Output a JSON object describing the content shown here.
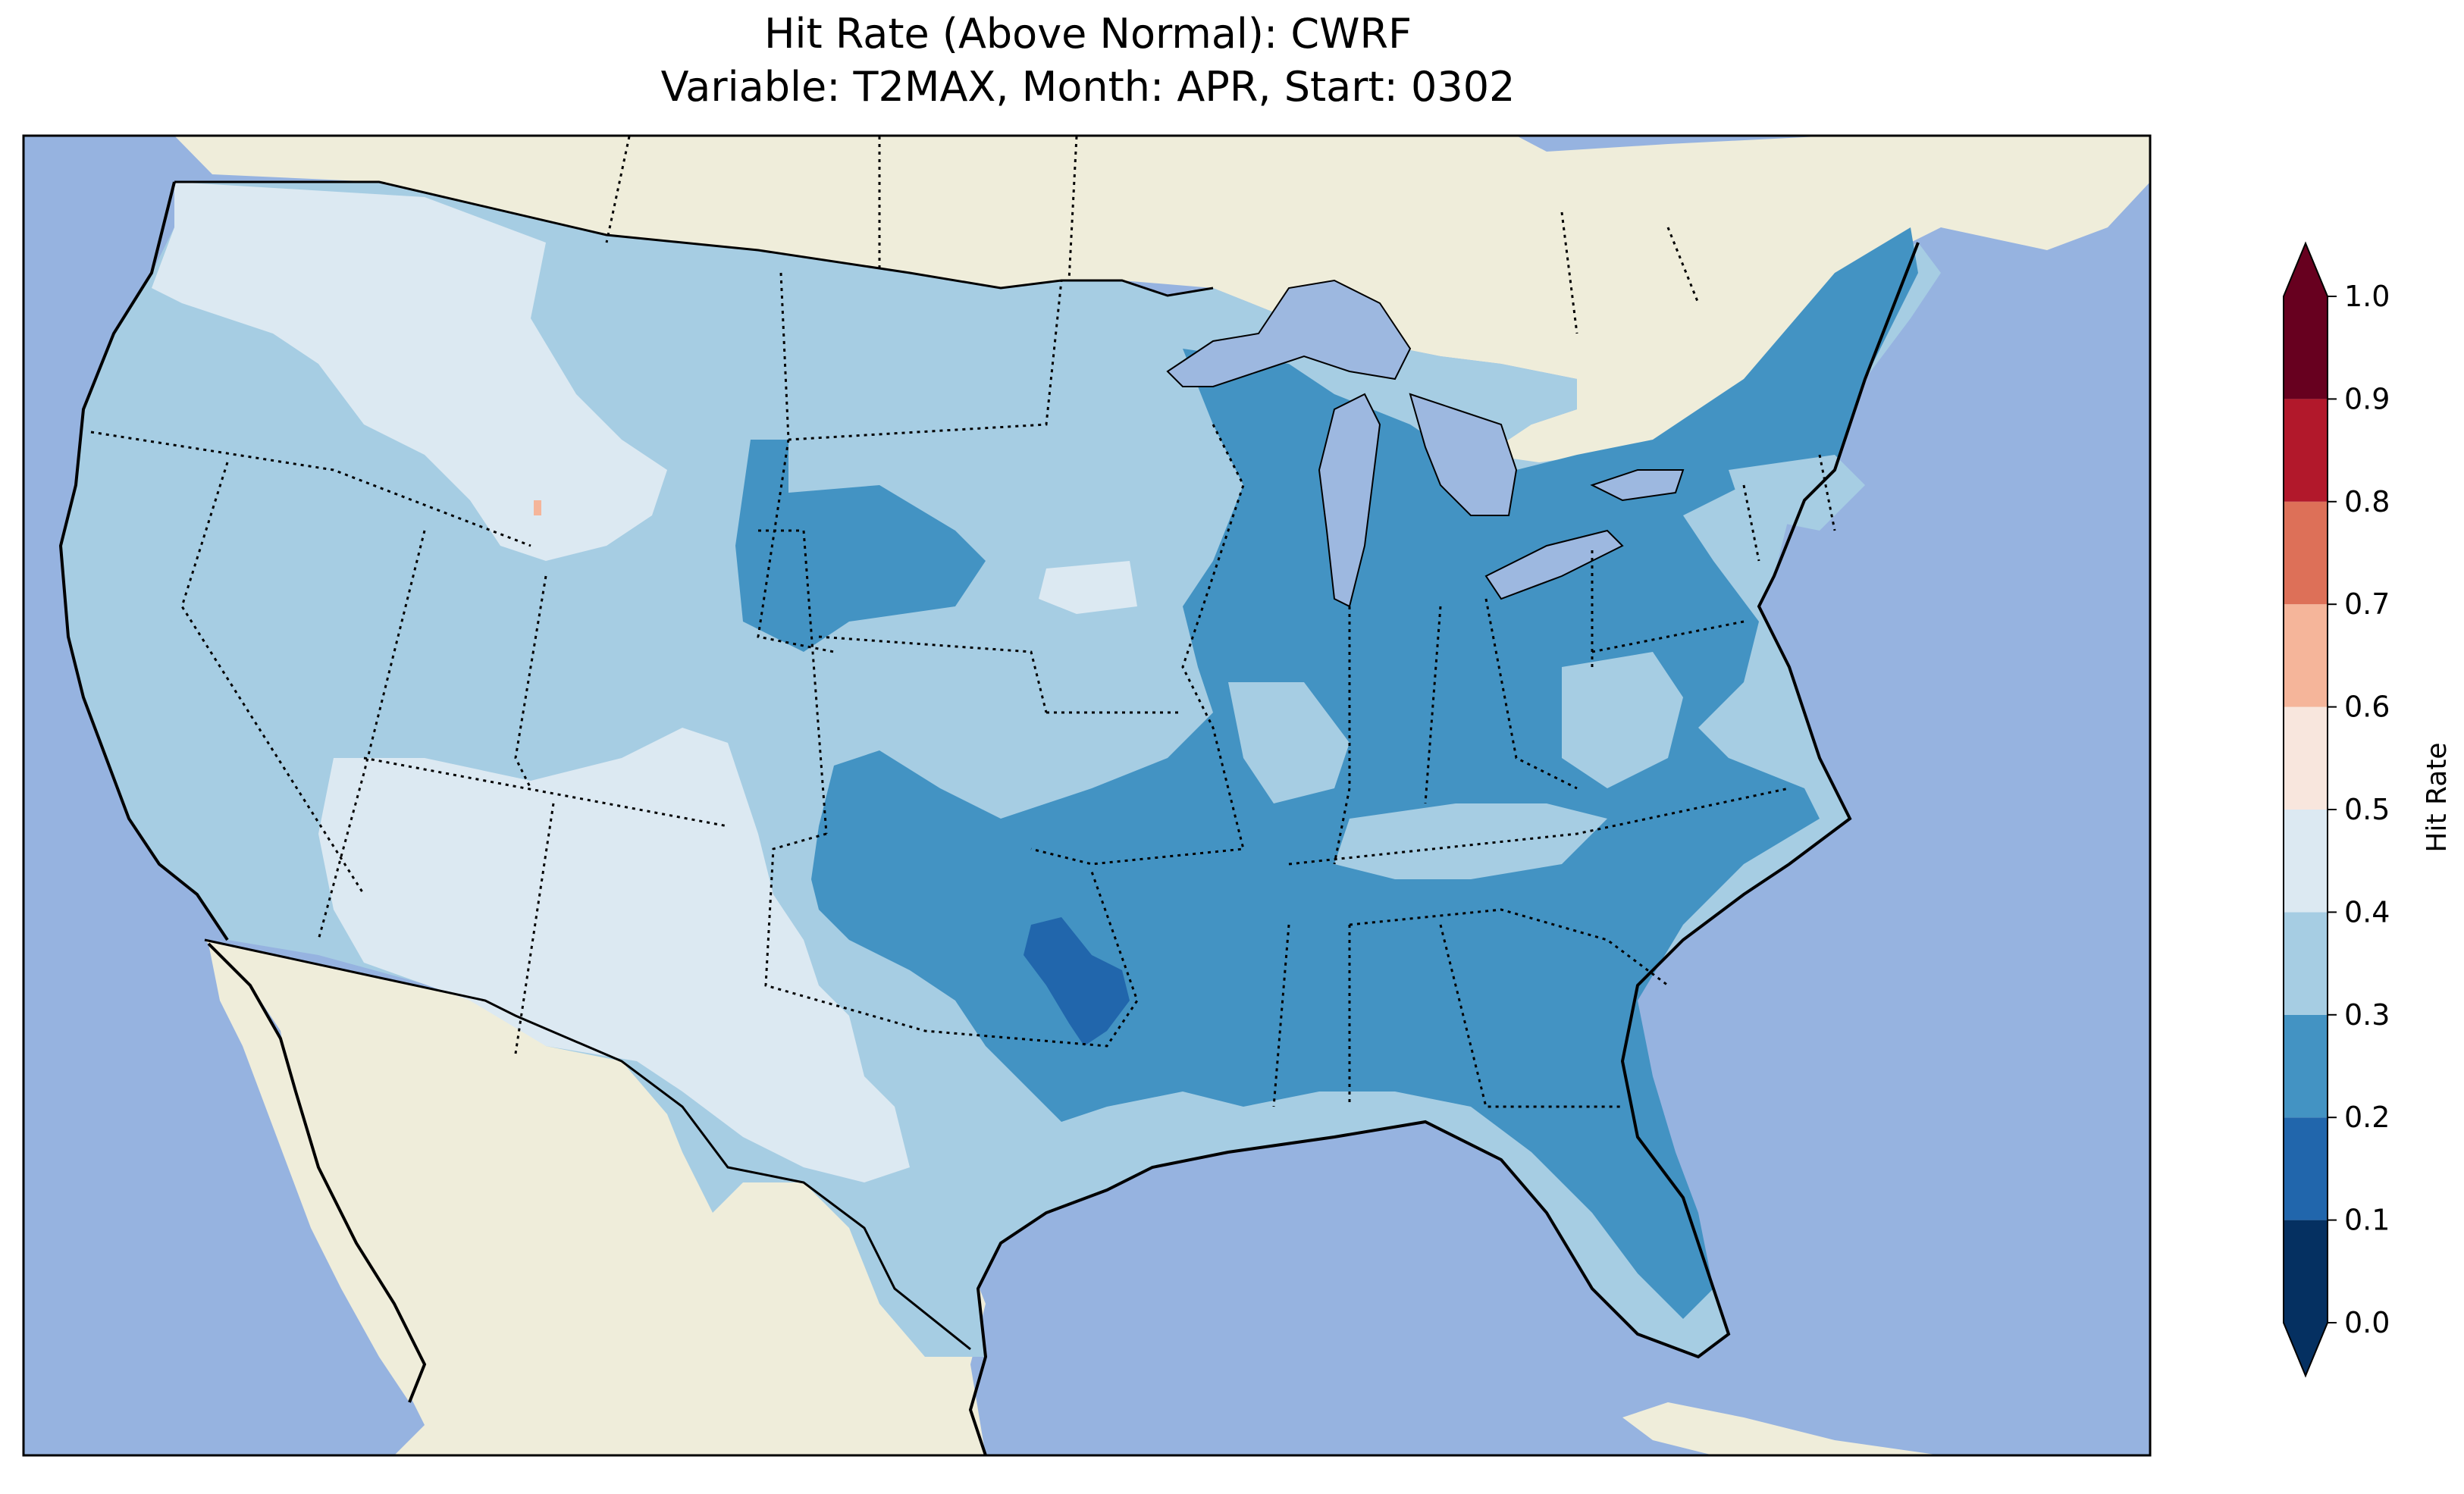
{
  "title": "Hit Rate (Above Normal): CWRF",
  "subtitle": "Variable: T2MAX, Month: APR, Start: 0302",
  "colors": {
    "ocean": "#96b3e0",
    "land": "#efedda",
    "lake": "#9db8e0",
    "border": "#000000"
  },
  "colorbar": {
    "label": "Hit Rate",
    "ticks": [
      "0.0",
      "0.1",
      "0.2",
      "0.3",
      "0.4",
      "0.5",
      "0.6",
      "0.7",
      "0.8",
      "0.9",
      "1.0"
    ],
    "bins": [
      {
        "range": [
          0.0,
          0.1
        ],
        "color": "#053061"
      },
      {
        "range": [
          0.1,
          0.2
        ],
        "color": "#2166ac"
      },
      {
        "range": [
          0.2,
          0.3
        ],
        "color": "#4393c3"
      },
      {
        "range": [
          0.3,
          0.4
        ],
        "color": "#a6cde3"
      },
      {
        "range": [
          0.4,
          0.5
        ],
        "color": "#dce9f2"
      },
      {
        "range": [
          0.5,
          0.6
        ],
        "color": "#f8e6dd"
      },
      {
        "range": [
          0.6,
          0.7
        ],
        "color": "#f5b59a"
      },
      {
        "range": [
          0.7,
          0.8
        ],
        "color": "#dd7058"
      },
      {
        "range": [
          0.8,
          0.9
        ],
        "color": "#b2182b"
      },
      {
        "range": [
          0.9,
          1.0
        ],
        "color": "#67001f"
      }
    ],
    "extend": "both"
  },
  "map_regions": [
    {
      "region": "Washington / Oregon interior / Idaho / western Montana",
      "value_bin": [
        0.4,
        0.5
      ]
    },
    {
      "region": "West coast, Great Basin, northern Rockies, Plains",
      "value_bin": [
        0.3,
        0.4
      ]
    },
    {
      "region": "Arizona / New Mexico / west Texas",
      "value_bin": [
        0.4,
        0.5
      ]
    },
    {
      "region": "Southeast, Ohio Valley, Great Lakes, Northeast",
      "value_bin": [
        0.2,
        0.3
      ]
    },
    {
      "region": "Oklahoma / north Texas pocket",
      "value_bin": [
        0.1,
        0.2
      ]
    },
    {
      "region": "Nebraska pocket",
      "value_bin": [
        0.4,
        0.5
      ]
    }
  ]
}
